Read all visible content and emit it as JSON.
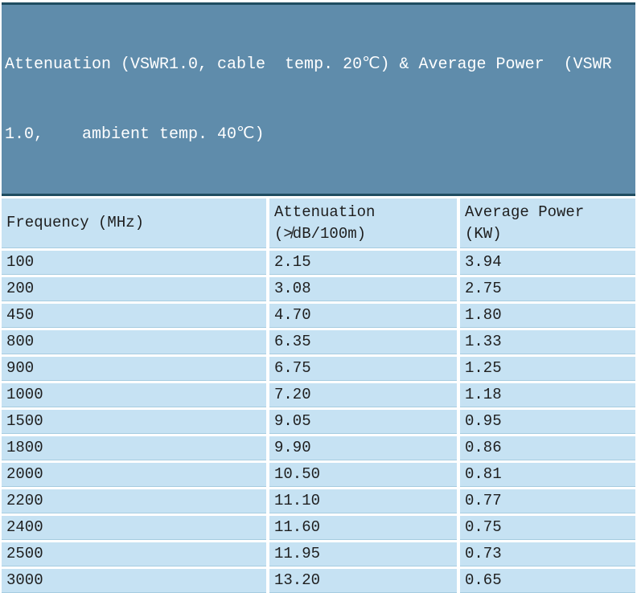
{
  "title": {
    "line1": "Attenuation (VSWR1.0, cable  temp. 20℃) & Average Power  (VSWR",
    "line2": "1.0,    ambient temp. 40℃)"
  },
  "table": {
    "headers": {
      "frequency": "Frequency (MHz)",
      "attenuation_line1": "Attenuation",
      "attenuation_line2": "(≯dB/100m)",
      "power_line1": "Average Power",
      "power_line2": "(KW)"
    },
    "rows": [
      [
        "100",
        "2.15",
        "3.94"
      ],
      [
        "200",
        "3.08",
        "2.75"
      ],
      [
        "450",
        "4.70",
        "1.80"
      ],
      [
        "800",
        "6.35",
        "1.33"
      ],
      [
        "900",
        "6.75",
        "1.25"
      ],
      [
        "1000",
        "7.20",
        "1.18"
      ],
      [
        "1500",
        "9.05",
        "0.95"
      ],
      [
        "1800",
        "9.90",
        "0.86"
      ],
      [
        "2000",
        "10.50",
        "0.81"
      ],
      [
        "2200",
        "11.10",
        "0.77"
      ],
      [
        "2400",
        "11.60",
        "0.75"
      ],
      [
        "2500",
        "11.95",
        "0.73"
      ],
      [
        "3000",
        "13.20",
        "0.65"
      ]
    ]
  },
  "colors": {
    "title_background": "#5F8CAB",
    "title_text": "#FFFFFF",
    "title_border": "#1F4D61",
    "cell_background": "#C6E2F3",
    "cell_text": "#1E1E1E",
    "row_divider": "#A6CCE0"
  }
}
